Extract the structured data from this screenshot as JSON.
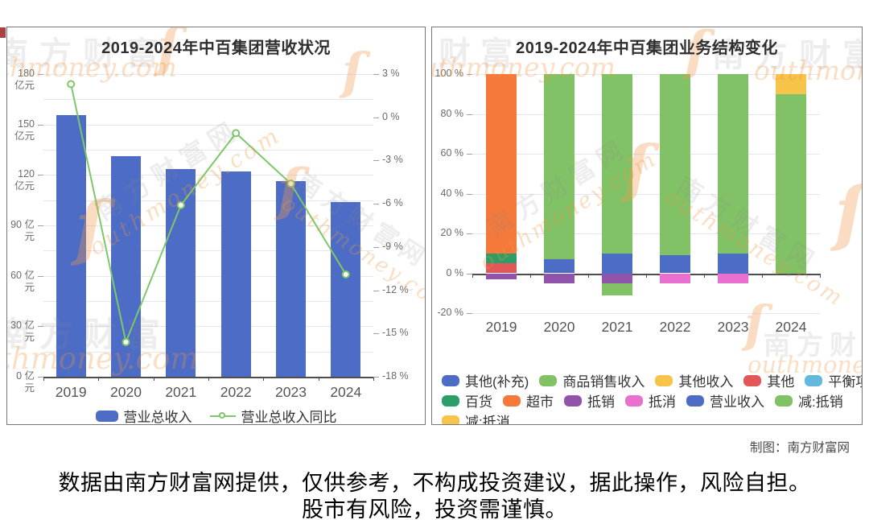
{
  "page": {
    "disclaimer_line1": "数据由南方财富网提供，仅供参考，不构成投资建议，据此操作，风险自担。",
    "disclaimer_line2": "股市有风险，投资需谨慎。",
    "credit": "制图：南方财富网"
  },
  "watermarks": {
    "brand_cn": "南方财富",
    "brand_cn_full": "南方财富网",
    "brand_en": "outhmoney.com",
    "brand_en_short": "thmoney.com",
    "swoosh_glyph": "ſ"
  },
  "chart_data": [
    {
      "type": "bar",
      "subtype": "bar-line-combo",
      "title": "2019-2024年中百集团营收状况",
      "categories": [
        "2019",
        "2020",
        "2021",
        "2022",
        "2023",
        "2024"
      ],
      "series": [
        {
          "name": "营业总收入",
          "kind": "bar",
          "axis": "left",
          "unit": "亿元",
          "color": "#4d6cc6",
          "values": [
            155.5,
            131,
            123.5,
            122,
            116.5,
            104
          ]
        },
        {
          "name": "营业总收入同比",
          "kind": "line",
          "axis": "right",
          "unit": "%",
          "color": "#7dc868",
          "values": [
            2.3,
            -15.6,
            -6.1,
            -1.1,
            -4.6,
            -10.9
          ]
        }
      ],
      "left_axis": {
        "min": 0,
        "max": 180,
        "minor_step": 15,
        "unit": "亿元",
        "ticks": [
          {
            "value": 180,
            "label": "180 亿元"
          },
          {
            "value": 150,
            "label": "150 亿元"
          },
          {
            "value": 120,
            "label": "120 亿元"
          },
          {
            "value": 90,
            "label": "90 亿元"
          },
          {
            "value": 60,
            "label": "60 亿元"
          },
          {
            "value": 30,
            "label": "30 亿元"
          },
          {
            "value": 0,
            "label": "0 亿元"
          }
        ]
      },
      "right_axis": {
        "min": -18,
        "max": 3,
        "unit": "%",
        "ticks": [
          {
            "value": 3,
            "label": "3 %"
          },
          {
            "value": 0,
            "label": "0 %"
          },
          {
            "value": -3,
            "label": "-3 %"
          },
          {
            "value": -6,
            "label": "-6 %"
          },
          {
            "value": -9,
            "label": "-9 %"
          },
          {
            "value": -12,
            "label": "-12 %"
          },
          {
            "value": -15,
            "label": "-15 %"
          },
          {
            "value": -18,
            "label": "-18 %"
          }
        ]
      },
      "legend": [
        {
          "label": "营业总收入",
          "marker": "bar",
          "color": "#4d6cc6"
        },
        {
          "label": "营业总收入同比",
          "marker": "line",
          "color": "#7dc868"
        }
      ],
      "grid": true,
      "legend_position": "bottom"
    },
    {
      "type": "bar",
      "subtype": "stacked-percent",
      "title": "2019-2024年中百集团业务结构变化",
      "categories": [
        "2019",
        "2020",
        "2021",
        "2022",
        "2023",
        "2024"
      ],
      "unit": "%",
      "ylim": [
        -20,
        100
      ],
      "y_axis": {
        "min": -20,
        "max": 100,
        "ticks": [
          {
            "value": 100,
            "label": "100 %"
          },
          {
            "value": 80,
            "label": "80 %"
          },
          {
            "value": 60,
            "label": "60 %"
          },
          {
            "value": 40,
            "label": "40 %"
          },
          {
            "value": 20,
            "label": "20 %"
          },
          {
            "value": 0,
            "label": "0 %"
          },
          {
            "value": -20,
            "label": "-20 %"
          }
        ]
      },
      "series": [
        {
          "name": "其他(补充)",
          "color": "#4d6cc6",
          "values": [
            0,
            7,
            10,
            9,
            10,
            0
          ]
        },
        {
          "name": "商品销售收入",
          "color": "#82c266",
          "values": [
            0,
            93,
            90,
            91,
            90,
            90
          ]
        },
        {
          "name": "其他收入",
          "color": "#f7c44a",
          "values": [
            0,
            0,
            0,
            0,
            0,
            10
          ]
        },
        {
          "name": "其他",
          "color": "#e25858",
          "values": [
            5,
            0,
            0,
            0,
            0,
            0
          ]
        },
        {
          "name": "平衡项目",
          "color": "#63b8de",
          "values": [
            0,
            0,
            0,
            0,
            0,
            0
          ]
        },
        {
          "name": "百货",
          "color": "#2e9e68",
          "values": [
            5,
            0,
            0,
            0,
            0,
            0
          ]
        },
        {
          "name": "超市",
          "color": "#f5793a",
          "values": [
            90,
            0,
            0,
            0,
            0,
            0
          ]
        },
        {
          "name": "抵销",
          "color": "#9054ab",
          "values": [
            -3,
            -5,
            -5,
            0,
            0,
            0
          ]
        },
        {
          "name": "抵消",
          "color": "#ea70d0",
          "values": [
            0,
            0,
            0,
            -5,
            -5,
            0
          ]
        },
        {
          "name": "营业收入",
          "color": "#4d6cc6",
          "values": [
            0,
            0,
            0,
            0,
            0,
            0
          ]
        },
        {
          "name": "减:抵销",
          "color": "#82c266",
          "values": [
            0,
            0,
            -6,
            0,
            0,
            0
          ]
        },
        {
          "name": "减:抵消",
          "color": "#f7c44a",
          "values": [
            0,
            0,
            0,
            0,
            0,
            0
          ]
        }
      ],
      "legend_rows": [
        [
          "其他(补充)",
          "商品销售收入",
          "其他收入",
          "其他",
          "平衡项目"
        ],
        [
          "百货",
          "超市",
          "抵销",
          "抵消",
          "营业收入",
          "减:抵销"
        ],
        [
          "减:抵消"
        ]
      ],
      "grid": true,
      "legend_position": "bottom"
    }
  ]
}
